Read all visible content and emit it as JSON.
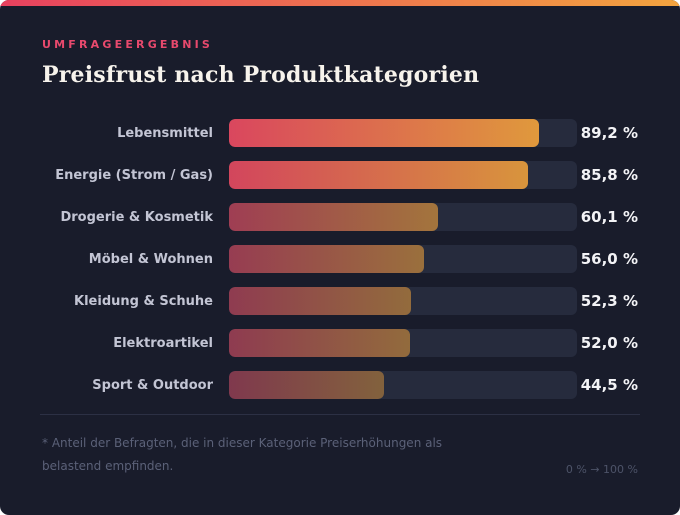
{
  "header": {
    "eyebrow": "UMFRAGEERGEBNIS",
    "title": "Preisfrust nach Produktkategorien"
  },
  "chart_data": {
    "type": "bar",
    "orientation": "horizontal",
    "title": "Preisfrust nach Produktkategorien",
    "categories": [
      "Lebensmittel",
      "Energie (Strom / Gas)",
      "Drogerie & Kosmetik",
      "Möbel & Wohnen",
      "Kleidung & Schuhe",
      "Elektroartikel",
      "Sport & Outdoor"
    ],
    "values": [
      89.2,
      85.8,
      60.1,
      56.0,
      52.3,
      52.0,
      44.5
    ],
    "value_labels": [
      "89,2 %",
      "85,8 %",
      "60,1 %",
      "56,0 %",
      "52,3 %",
      "52,0 %",
      "44,5 %"
    ],
    "xlabel": "",
    "ylabel": "",
    "xlim": [
      0,
      100
    ],
    "grid": false,
    "legend": "none",
    "bar_opacity_rule": "value/100"
  },
  "footer": {
    "note": "* Anteil der Befragten, die in dieser Kategorie Preiserhöhungen als belastend empfinden.",
    "axis_range": "0 % → 100 %"
  },
  "colors": {
    "background": "#191c2b",
    "track": "#262b3d",
    "accent_start": "#e8415f",
    "accent_end": "#f3a43f",
    "bar_start": "#ef4a62",
    "bar_end": "#f6a63c",
    "eyebrow": "#e8496d"
  }
}
